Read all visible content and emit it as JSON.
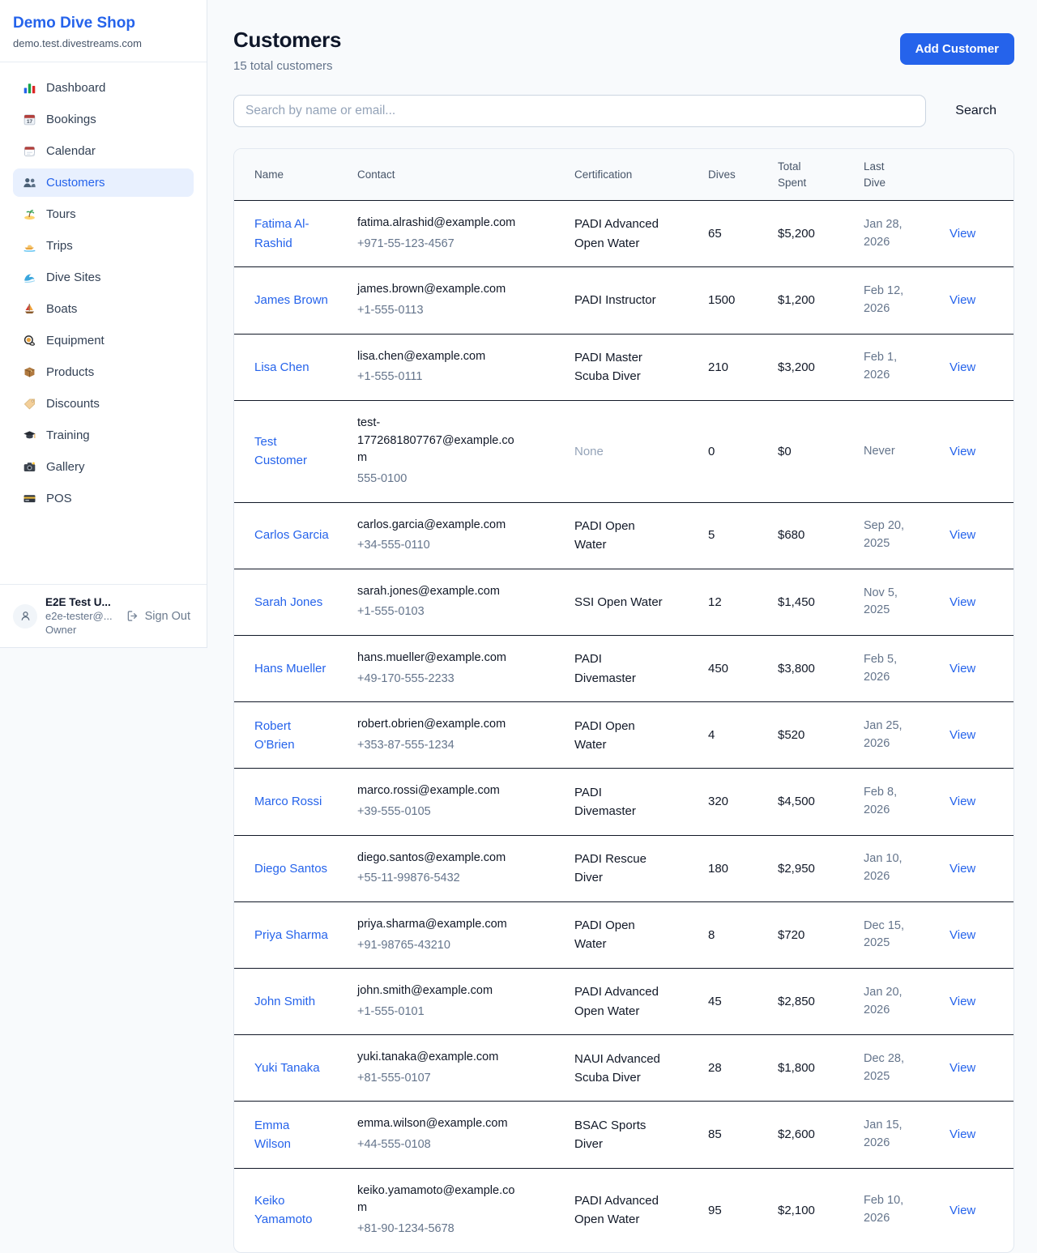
{
  "colors": {
    "accent": "#2563eb",
    "active_nav_bg": "#e8f0fe",
    "page_bg": "#f8fafc",
    "table_header_bg": "#f8fafc",
    "row_divider": "#111827",
    "muted_text": "#64748b"
  },
  "sidebar": {
    "brand": {
      "title": "Demo Dive Shop",
      "domain": "demo.test.divestreams.com"
    },
    "nav": [
      {
        "label": "Dashboard",
        "icon": "bar-chart",
        "active": false
      },
      {
        "label": "Bookings",
        "icon": "calendar-date",
        "active": false
      },
      {
        "label": "Calendar",
        "icon": "tear-calendar",
        "active": false
      },
      {
        "label": "Customers",
        "icon": "people",
        "active": true
      },
      {
        "label": "Tours",
        "icon": "island",
        "active": false
      },
      {
        "label": "Trips",
        "icon": "speedboat",
        "active": false
      },
      {
        "label": "Dive Sites",
        "icon": "wave",
        "active": false
      },
      {
        "label": "Boats",
        "icon": "sailboat",
        "active": false
      },
      {
        "label": "Equipment",
        "icon": "dive-mask",
        "active": false
      },
      {
        "label": "Products",
        "icon": "package",
        "active": false
      },
      {
        "label": "Discounts",
        "icon": "tag",
        "active": false
      },
      {
        "label": "Training",
        "icon": "grad-cap",
        "active": false
      },
      {
        "label": "Gallery",
        "icon": "camera",
        "active": false
      },
      {
        "label": "POS",
        "icon": "credit-card",
        "active": false
      }
    ],
    "user": {
      "name": "E2E Test U...",
      "email": "e2e-tester@...",
      "role": "Owner",
      "sign_out_label": "Sign Out"
    }
  },
  "header": {
    "title": "Customers",
    "subtitle": "15 total customers",
    "add_button_label": "Add Customer"
  },
  "search": {
    "placeholder": "Search by name or email...",
    "button_label": "Search"
  },
  "table": {
    "columns": [
      "Name",
      "Contact",
      "Certification",
      "Dives",
      "Total Spent",
      "Last Dive",
      ""
    ],
    "view_label": "View",
    "rows": [
      {
        "name": "Fatima Al-Rashid",
        "email": "fatima.alrashid@example.com",
        "phone": "+971-55-123-4567",
        "certification": "PADI Advanced Open Water",
        "dives": "65",
        "total_spent": "$5,200",
        "last_dive": "Jan 28, 2026"
      },
      {
        "name": "James Brown",
        "email": "james.brown@example.com",
        "phone": "+1-555-0113",
        "certification": "PADI Instructor",
        "dives": "1500",
        "total_spent": "$1,200",
        "last_dive": "Feb 12, 2026"
      },
      {
        "name": "Lisa Chen",
        "email": "lisa.chen@example.com",
        "phone": "+1-555-0111",
        "certification": "PADI Master Scuba Diver",
        "dives": "210",
        "total_spent": "$3,200",
        "last_dive": "Feb 1, 2026"
      },
      {
        "name": "Test Customer",
        "email": "test-1772681807767@example.com",
        "phone": "555-0100",
        "certification": "None",
        "dives": "0",
        "total_spent": "$0",
        "last_dive": "Never"
      },
      {
        "name": "Carlos Garcia",
        "email": "carlos.garcia@example.com",
        "phone": "+34-555-0110",
        "certification": "PADI Open Water",
        "dives": "5",
        "total_spent": "$680",
        "last_dive": "Sep 20, 2025"
      },
      {
        "name": "Sarah Jones",
        "email": "sarah.jones@example.com",
        "phone": "+1-555-0103",
        "certification": "SSI Open Water",
        "dives": "12",
        "total_spent": "$1,450",
        "last_dive": "Nov 5, 2025"
      },
      {
        "name": "Hans Mueller",
        "email": "hans.mueller@example.com",
        "phone": "+49-170-555-2233",
        "certification": "PADI Divemaster",
        "dives": "450",
        "total_spent": "$3,800",
        "last_dive": "Feb 5, 2026"
      },
      {
        "name": "Robert O'Brien",
        "email": "robert.obrien@example.com",
        "phone": "+353-87-555-1234",
        "certification": "PADI Open Water",
        "dives": "4",
        "total_spent": "$520",
        "last_dive": "Jan 25, 2026"
      },
      {
        "name": "Marco Rossi",
        "email": "marco.rossi@example.com",
        "phone": "+39-555-0105",
        "certification": "PADI Divemaster",
        "dives": "320",
        "total_spent": "$4,500",
        "last_dive": "Feb 8, 2026"
      },
      {
        "name": "Diego Santos",
        "email": "diego.santos@example.com",
        "phone": "+55-11-99876-5432",
        "certification": "PADI Rescue Diver",
        "dives": "180",
        "total_spent": "$2,950",
        "last_dive": "Jan 10, 2026"
      },
      {
        "name": "Priya Sharma",
        "email": "priya.sharma@example.com",
        "phone": "+91-98765-43210",
        "certification": "PADI Open Water",
        "dives": "8",
        "total_spent": "$720",
        "last_dive": "Dec 15, 2025"
      },
      {
        "name": "John Smith",
        "email": "john.smith@example.com",
        "phone": "+1-555-0101",
        "certification": "PADI Advanced Open Water",
        "dives": "45",
        "total_spent": "$2,850",
        "last_dive": "Jan 20, 2026"
      },
      {
        "name": "Yuki Tanaka",
        "email": "yuki.tanaka@example.com",
        "phone": "+81-555-0107",
        "certification": "NAUI Advanced Scuba Diver",
        "dives": "28",
        "total_spent": "$1,800",
        "last_dive": "Dec 28, 2025"
      },
      {
        "name": "Emma Wilson",
        "email": "emma.wilson@example.com",
        "phone": "+44-555-0108",
        "certification": "BSAC Sports Diver",
        "dives": "85",
        "total_spent": "$2,600",
        "last_dive": "Jan 15, 2026"
      },
      {
        "name": "Keiko Yamamoto",
        "email": "keiko.yamamoto@example.com",
        "phone": "+81-90-1234-5678",
        "certification": "PADI Advanced Open Water",
        "dives": "95",
        "total_spent": "$2,100",
        "last_dive": "Feb 10, 2026"
      }
    ]
  }
}
